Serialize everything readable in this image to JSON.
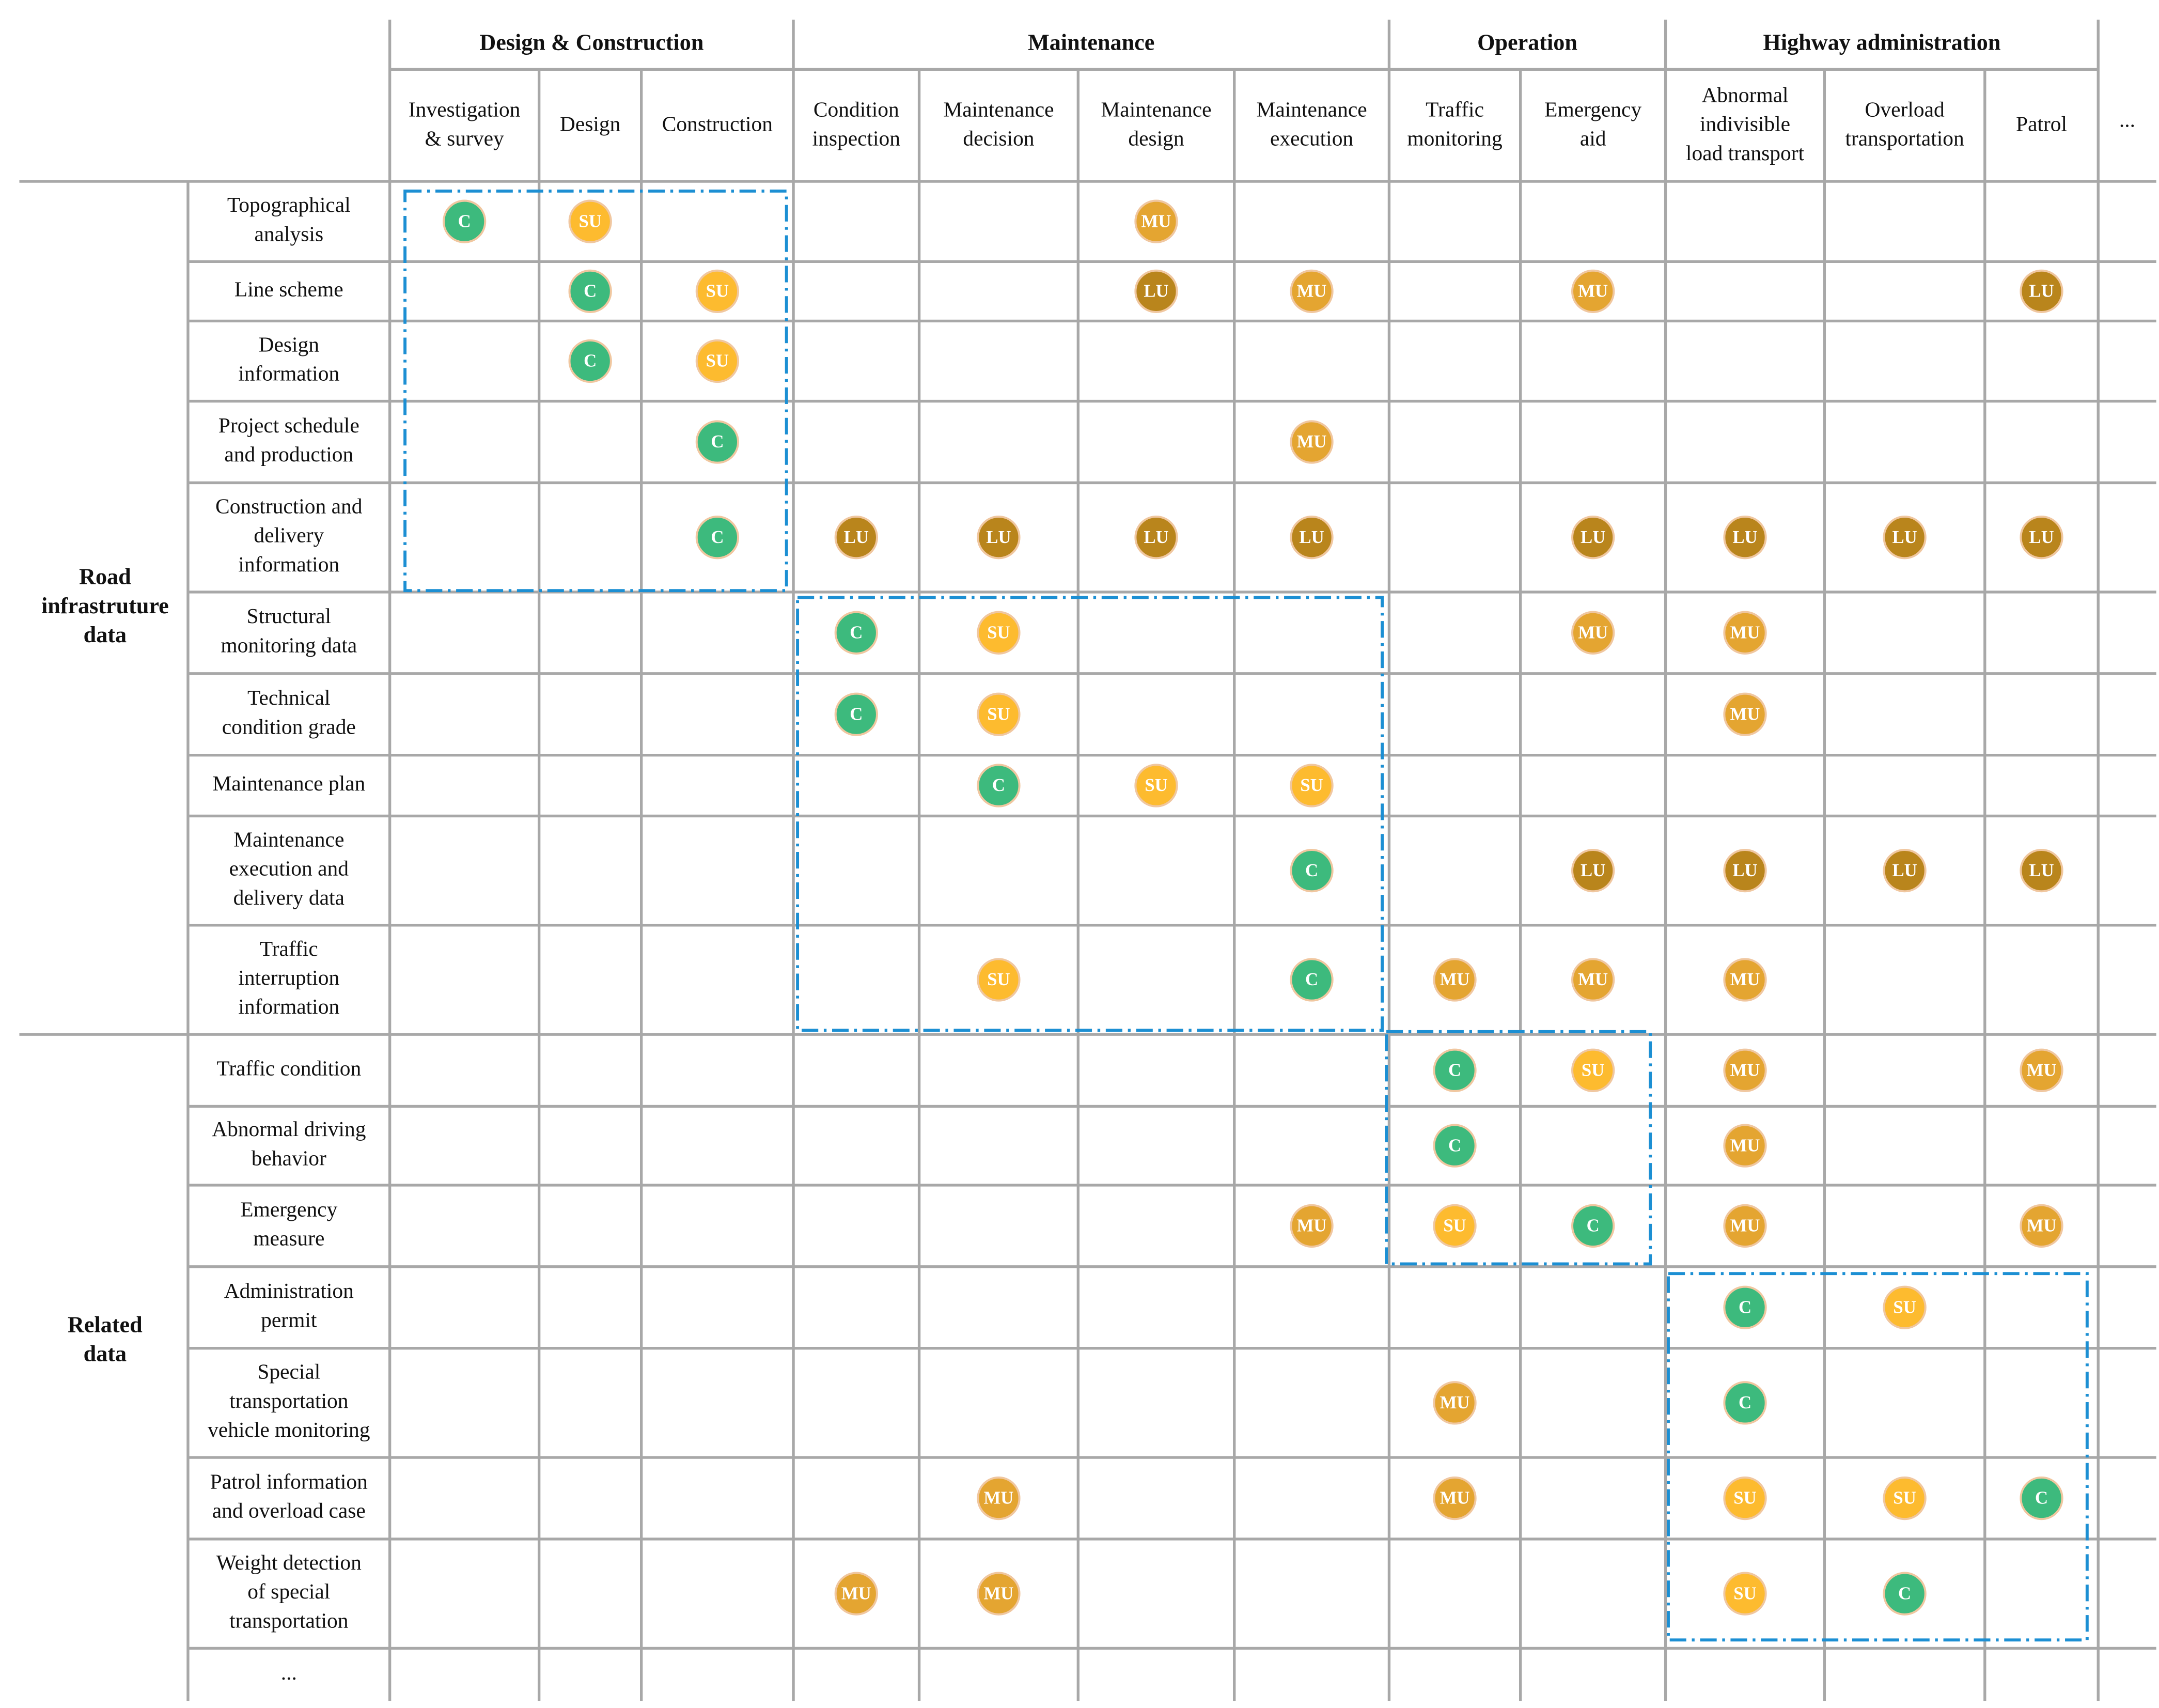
{
  "groups": [
    {
      "title": "Design & Construction",
      "columns": [
        {
          "label": [
            "Investigation",
            "& survey"
          ]
        },
        {
          "label": [
            "Design"
          ]
        },
        {
          "label": [
            "Construction"
          ]
        }
      ]
    },
    {
      "title": "Maintenance",
      "columns": [
        {
          "label": [
            "Condition",
            "inspection"
          ]
        },
        {
          "label": [
            "Maintenance",
            "decision"
          ]
        },
        {
          "label": [
            "Maintenance",
            "design"
          ]
        },
        {
          "label": [
            "Maintenance",
            "execution"
          ]
        }
      ]
    },
    {
      "title": "Operation",
      "columns": [
        {
          "label": [
            "Traffic",
            "monitoring"
          ]
        },
        {
          "label": [
            "Emergency",
            "aid"
          ]
        }
      ]
    },
    {
      "title": "Highway administration",
      "columns": [
        {
          "label": [
            "Abnormal",
            "indivisible",
            "load transport"
          ]
        },
        {
          "label": [
            "Overload",
            "transportation"
          ]
        },
        {
          "label": [
            "Patrol"
          ]
        }
      ]
    }
  ],
  "more_columns": "...",
  "row_groups": [
    {
      "title": [
        "Road",
        "infrastruture",
        "data"
      ],
      "rows": [
        {
          "label": [
            "Topographical",
            "analysis"
          ],
          "cells": [
            "C",
            "SU",
            null,
            null,
            null,
            "MU",
            null,
            null,
            null,
            null,
            null,
            null
          ]
        },
        {
          "label": [
            "Line scheme"
          ],
          "cells": [
            null,
            "C",
            "SU",
            null,
            null,
            "LU",
            "MU",
            null,
            "MU",
            null,
            null,
            "LU"
          ]
        },
        {
          "label": [
            "Design",
            "information"
          ],
          "cells": [
            null,
            "C",
            "SU",
            null,
            null,
            null,
            null,
            null,
            null,
            null,
            null,
            null
          ]
        },
        {
          "label": [
            "Project schedule",
            "and production"
          ],
          "cells": [
            null,
            null,
            "C",
            null,
            null,
            null,
            "MU",
            null,
            null,
            null,
            null,
            null
          ]
        },
        {
          "label": [
            "Construction and",
            "delivery",
            "information"
          ],
          "cells": [
            null,
            null,
            "C",
            "LU",
            "LU",
            "LU",
            "LU",
            null,
            "LU",
            "LU",
            "LU",
            "LU"
          ]
        },
        {
          "label": [
            "Structural",
            "monitoring data"
          ],
          "cells": [
            null,
            null,
            null,
            "C",
            "SU",
            null,
            null,
            null,
            "MU",
            "MU",
            null,
            null
          ]
        },
        {
          "label": [
            "Technical",
            "condition grade"
          ],
          "cells": [
            null,
            null,
            null,
            "C",
            "SU",
            null,
            null,
            null,
            null,
            "MU",
            null,
            null
          ]
        },
        {
          "label": [
            "Maintenance plan"
          ],
          "cells": [
            null,
            null,
            null,
            null,
            "C",
            "SU",
            "SU",
            null,
            null,
            null,
            null,
            null
          ]
        },
        {
          "label": [
            "Maintenance",
            "execution and",
            "delivery data"
          ],
          "cells": [
            null,
            null,
            null,
            null,
            null,
            null,
            "C",
            null,
            "LU",
            "LU",
            "LU",
            "LU"
          ]
        },
        {
          "label": [
            "Traffic",
            "interruption",
            "information"
          ],
          "cells": [
            null,
            null,
            null,
            null,
            "SU",
            null,
            "C",
            "MU",
            "MU",
            "MU",
            null,
            null
          ]
        }
      ]
    },
    {
      "title": [
        "Related",
        "data"
      ],
      "rows": [
        {
          "label": [
            "Traffic condition"
          ],
          "cells": [
            null,
            null,
            null,
            null,
            null,
            null,
            null,
            "C",
            "SU",
            "MU",
            null,
            "MU"
          ]
        },
        {
          "label": [
            "Abnormal driving",
            "behavior"
          ],
          "cells": [
            null,
            null,
            null,
            null,
            null,
            null,
            null,
            "C",
            null,
            "MU",
            null,
            null
          ]
        },
        {
          "label": [
            "Emergency",
            "measure"
          ],
          "cells": [
            null,
            null,
            null,
            null,
            null,
            null,
            "MU",
            "SU",
            "C",
            "MU",
            null,
            "MU"
          ]
        },
        {
          "label": [
            "Administration",
            "permit"
          ],
          "cells": [
            null,
            null,
            null,
            null,
            null,
            null,
            null,
            null,
            null,
            "C",
            "SU",
            null
          ]
        },
        {
          "label": [
            "Special",
            "transportation",
            "vehicle monitoring"
          ],
          "cells": [
            null,
            null,
            null,
            null,
            null,
            null,
            null,
            "MU",
            null,
            "C",
            null,
            null
          ]
        },
        {
          "label": [
            "Patrol information",
            "and overload case"
          ],
          "cells": [
            null,
            null,
            null,
            null,
            "MU",
            null,
            null,
            "MU",
            null,
            "SU",
            "SU",
            "C"
          ]
        },
        {
          "label": [
            "Weight detection",
            "of special",
            "transportation"
          ],
          "cells": [
            null,
            null,
            null,
            "MU",
            "MU",
            null,
            null,
            null,
            null,
            "SU",
            "C",
            null
          ]
        }
      ]
    }
  ],
  "more_rows": "...",
  "badge_colors": {
    "C": "#3dba7d",
    "SU": "#fdbb2f",
    "MU": "#e4a531",
    "LU": "#b9851c"
  }
}
